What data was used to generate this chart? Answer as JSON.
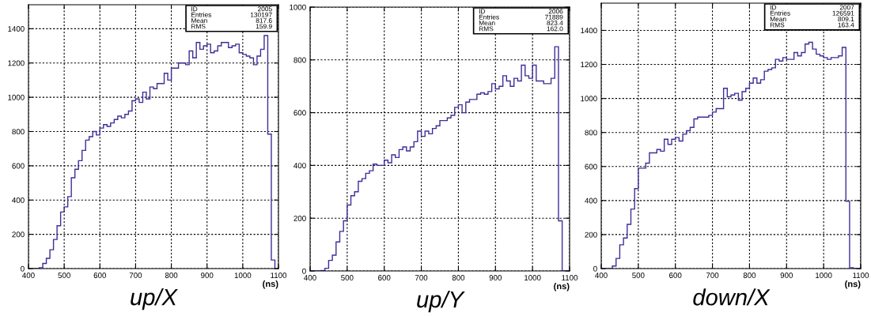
{
  "chart_data": [
    {
      "type": "histogram",
      "title": "up/X",
      "xlabel": "(ns)",
      "color": "#3c2f98",
      "xlim": [
        400,
        1100
      ],
      "xticks": [
        400,
        500,
        600,
        700,
        800,
        900,
        1000,
        1100
      ],
      "ylim": [
        0,
        1540
      ],
      "yticks": [
        0,
        200,
        400,
        600,
        800,
        1000,
        1200,
        1400
      ],
      "grid": true,
      "annotations": [
        "ID",
        "2005",
        "Entries",
        "130197",
        "Mean",
        "817.6",
        "RMS",
        "159.9"
      ],
      "bins": [
        400,
        410,
        420,
        430,
        440,
        450,
        460,
        470,
        480,
        490,
        500,
        510,
        520,
        530,
        540,
        550,
        560,
        570,
        580,
        590,
        600,
        610,
        620,
        630,
        640,
        650,
        660,
        670,
        680,
        690,
        700,
        710,
        720,
        730,
        740,
        750,
        760,
        770,
        780,
        790,
        800,
        810,
        820,
        830,
        840,
        850,
        860,
        870,
        880,
        890,
        900,
        910,
        920,
        930,
        940,
        950,
        960,
        970,
        980,
        990,
        1000,
        1010,
        1020,
        1030,
        1040,
        1050,
        1060,
        1070,
        1080,
        1090,
        1100
      ],
      "values": [
        0,
        0,
        0,
        5,
        30,
        60,
        110,
        170,
        250,
        330,
        360,
        420,
        530,
        580,
        630,
        690,
        750,
        770,
        800,
        780,
        820,
        840,
        830,
        850,
        870,
        890,
        880,
        900,
        920,
        980,
        990,
        970,
        1030,
        990,
        1060,
        1050,
        1080,
        1080,
        1140,
        1100,
        1170,
        1170,
        1200,
        1200,
        1190,
        1270,
        1230,
        1320,
        1280,
        1300,
        1310,
        1260,
        1270,
        1300,
        1320,
        1320,
        1290,
        1300,
        1310,
        1260,
        1250,
        1240,
        1230,
        1190,
        1240,
        1280,
        1360,
        785,
        50,
        0
      ]
    },
    {
      "type": "histogram",
      "title": "up/Y",
      "xlabel": "(ns)",
      "color": "#3c2f98",
      "xlim": [
        400,
        1100
      ],
      "xticks": [
        400,
        500,
        600,
        700,
        800,
        900,
        1000,
        1100
      ],
      "ylim": [
        0,
        1000
      ],
      "yticks": [
        0,
        200,
        400,
        600,
        800,
        1000
      ],
      "grid": true,
      "annotations": [
        "ID",
        "2006",
        "Entries",
        "71889",
        "Mean",
        "823.4",
        "RMS",
        "162.0"
      ],
      "bins": [
        400,
        410,
        420,
        430,
        440,
        450,
        460,
        470,
        480,
        490,
        500,
        510,
        520,
        530,
        540,
        550,
        560,
        570,
        580,
        590,
        600,
        610,
        620,
        630,
        640,
        650,
        660,
        670,
        680,
        690,
        700,
        710,
        720,
        730,
        740,
        750,
        760,
        770,
        780,
        790,
        800,
        810,
        820,
        830,
        840,
        850,
        860,
        870,
        880,
        890,
        900,
        910,
        920,
        930,
        940,
        950,
        960,
        970,
        980,
        990,
        1000,
        1010,
        1020,
        1030,
        1040,
        1050,
        1060,
        1070,
        1080,
        1090,
        1100
      ],
      "values": [
        0,
        0,
        0,
        2,
        10,
        40,
        60,
        110,
        150,
        190,
        250,
        285,
        300,
        340,
        350,
        370,
        380,
        405,
        400,
        400,
        420,
        410,
        440,
        430,
        460,
        470,
        455,
        470,
        490,
        530,
        510,
        530,
        520,
        540,
        550,
        570,
        570,
        580,
        590,
        620,
        630,
        600,
        640,
        650,
        650,
        670,
        675,
        670,
        680,
        710,
        690,
        700,
        740,
        720,
        700,
        730,
        720,
        780,
        740,
        730,
        780,
        720,
        720,
        710,
        710,
        730,
        850,
        190,
        0,
        0
      ]
    },
    {
      "type": "histogram",
      "title": "down/X",
      "xlabel": "(ns)",
      "color": "#3c2f98",
      "xlim": [
        400,
        1100
      ],
      "xticks": [
        400,
        500,
        600,
        700,
        800,
        900,
        1000,
        1100
      ],
      "ylim": [
        0,
        1560
      ],
      "yticks": [
        0,
        200,
        400,
        600,
        800,
        1000,
        1200,
        1400
      ],
      "grid": true,
      "annotations": [
        "ID",
        "2007",
        "Entries",
        "126591",
        "Mean",
        "809.1",
        "RMS",
        "163.4"
      ],
      "bins": [
        400,
        410,
        420,
        430,
        440,
        450,
        460,
        470,
        480,
        490,
        500,
        510,
        520,
        530,
        540,
        550,
        560,
        570,
        580,
        590,
        600,
        610,
        620,
        630,
        640,
        650,
        660,
        670,
        680,
        690,
        700,
        710,
        720,
        730,
        740,
        750,
        760,
        770,
        780,
        790,
        800,
        810,
        820,
        830,
        840,
        850,
        860,
        870,
        880,
        890,
        900,
        910,
        920,
        930,
        940,
        950,
        960,
        970,
        980,
        990,
        1000,
        1010,
        1020,
        1030,
        1040,
        1050,
        1060,
        1070,
        1080,
        1090,
        1100
      ],
      "values": [
        0,
        0,
        0,
        15,
        60,
        140,
        180,
        260,
        350,
        470,
        590,
        590,
        620,
        680,
        680,
        700,
        690,
        760,
        730,
        760,
        770,
        750,
        790,
        810,
        830,
        880,
        890,
        890,
        890,
        900,
        920,
        940,
        940,
        1060,
        1010,
        1020,
        1030,
        990,
        1040,
        1060,
        1090,
        1120,
        1090,
        1110,
        1160,
        1170,
        1180,
        1230,
        1220,
        1240,
        1230,
        1230,
        1270,
        1250,
        1270,
        1320,
        1330,
        1290,
        1260,
        1250,
        1240,
        1230,
        1240,
        1240,
        1250,
        1300,
        395,
        5,
        0,
        0
      ]
    }
  ]
}
